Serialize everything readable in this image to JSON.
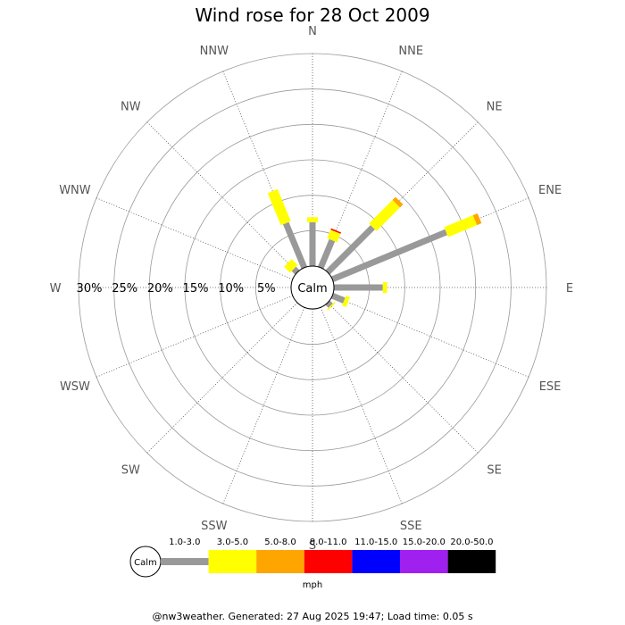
{
  "chart_data": {
    "type": "wind-rose",
    "title": "Wind rose for 28 Oct 2009",
    "directions": [
      "N",
      "NNE",
      "NE",
      "ENE",
      "E",
      "ESE",
      "SE",
      "SSE",
      "S",
      "SSW",
      "SW",
      "WSW",
      "W",
      "WNW",
      "NW",
      "NNW"
    ],
    "radial_scale": {
      "max_percent": 30,
      "tick_step": 5,
      "label_position": "west"
    },
    "radial_tick_labels": [
      "5%",
      "10%",
      "15%",
      "20%",
      "25%",
      "30%"
    ],
    "calm_label": "Calm",
    "speed_bins": [
      {
        "label": "1.0-3.0",
        "color": "#999999"
      },
      {
        "label": "3.0-5.0",
        "color": "#ffff00"
      },
      {
        "label": "5.0-8.0",
        "color": "#ffa500"
      },
      {
        "label": "8.0-11.0",
        "color": "#ff0000"
      },
      {
        "label": "11.0-15.0",
        "color": "#0000ff"
      },
      {
        "label": "15.0-20.0",
        "color": "#a020f0"
      },
      {
        "label": "20.0-50.0",
        "color": "#000000"
      }
    ],
    "series": [
      {
        "direction": "N",
        "segments": [
          6.2,
          0.7
        ]
      },
      {
        "direction": "NNE",
        "segments": [
          4.2,
          1.3,
          0,
          0.2
        ]
      },
      {
        "direction": "NE",
        "segments": [
          9.0,
          4.7,
          0.6
        ]
      },
      {
        "direction": "ENE",
        "segments": [
          17.4,
          4.4,
          0.7
        ]
      },
      {
        "direction": "E",
        "segments": [
          6.9,
          0.6
        ]
      },
      {
        "direction": "ESE",
        "segments": [
          1.8,
          0.6
        ]
      },
      {
        "direction": "SE",
        "segments": [
          0.6,
          0.2
        ]
      },
      {
        "direction": "SSE",
        "segments": [
          0,
          0
        ]
      },
      {
        "direction": "S",
        "segments": [
          0,
          0
        ]
      },
      {
        "direction": "SSW",
        "segments": [
          0,
          0
        ]
      },
      {
        "direction": "SW",
        "segments": [
          0,
          0
        ]
      },
      {
        "direction": "WSW",
        "segments": [
          0,
          0
        ]
      },
      {
        "direction": "W",
        "segments": [
          0,
          0
        ]
      },
      {
        "direction": "WNW",
        "segments": [
          0,
          0
        ]
      },
      {
        "direction": "NW",
        "segments": [
          0.7,
          1.2
        ]
      },
      {
        "direction": "NNW",
        "segments": [
          6.8,
          4.9
        ]
      }
    ],
    "legend": {
      "calm_label": "Calm",
      "unit": "mph",
      "position": "bottom"
    },
    "grid": true
  },
  "footer": "@nw3weather. Generated: 27 Aug 2025 19:47; Load time: 0.05 s"
}
